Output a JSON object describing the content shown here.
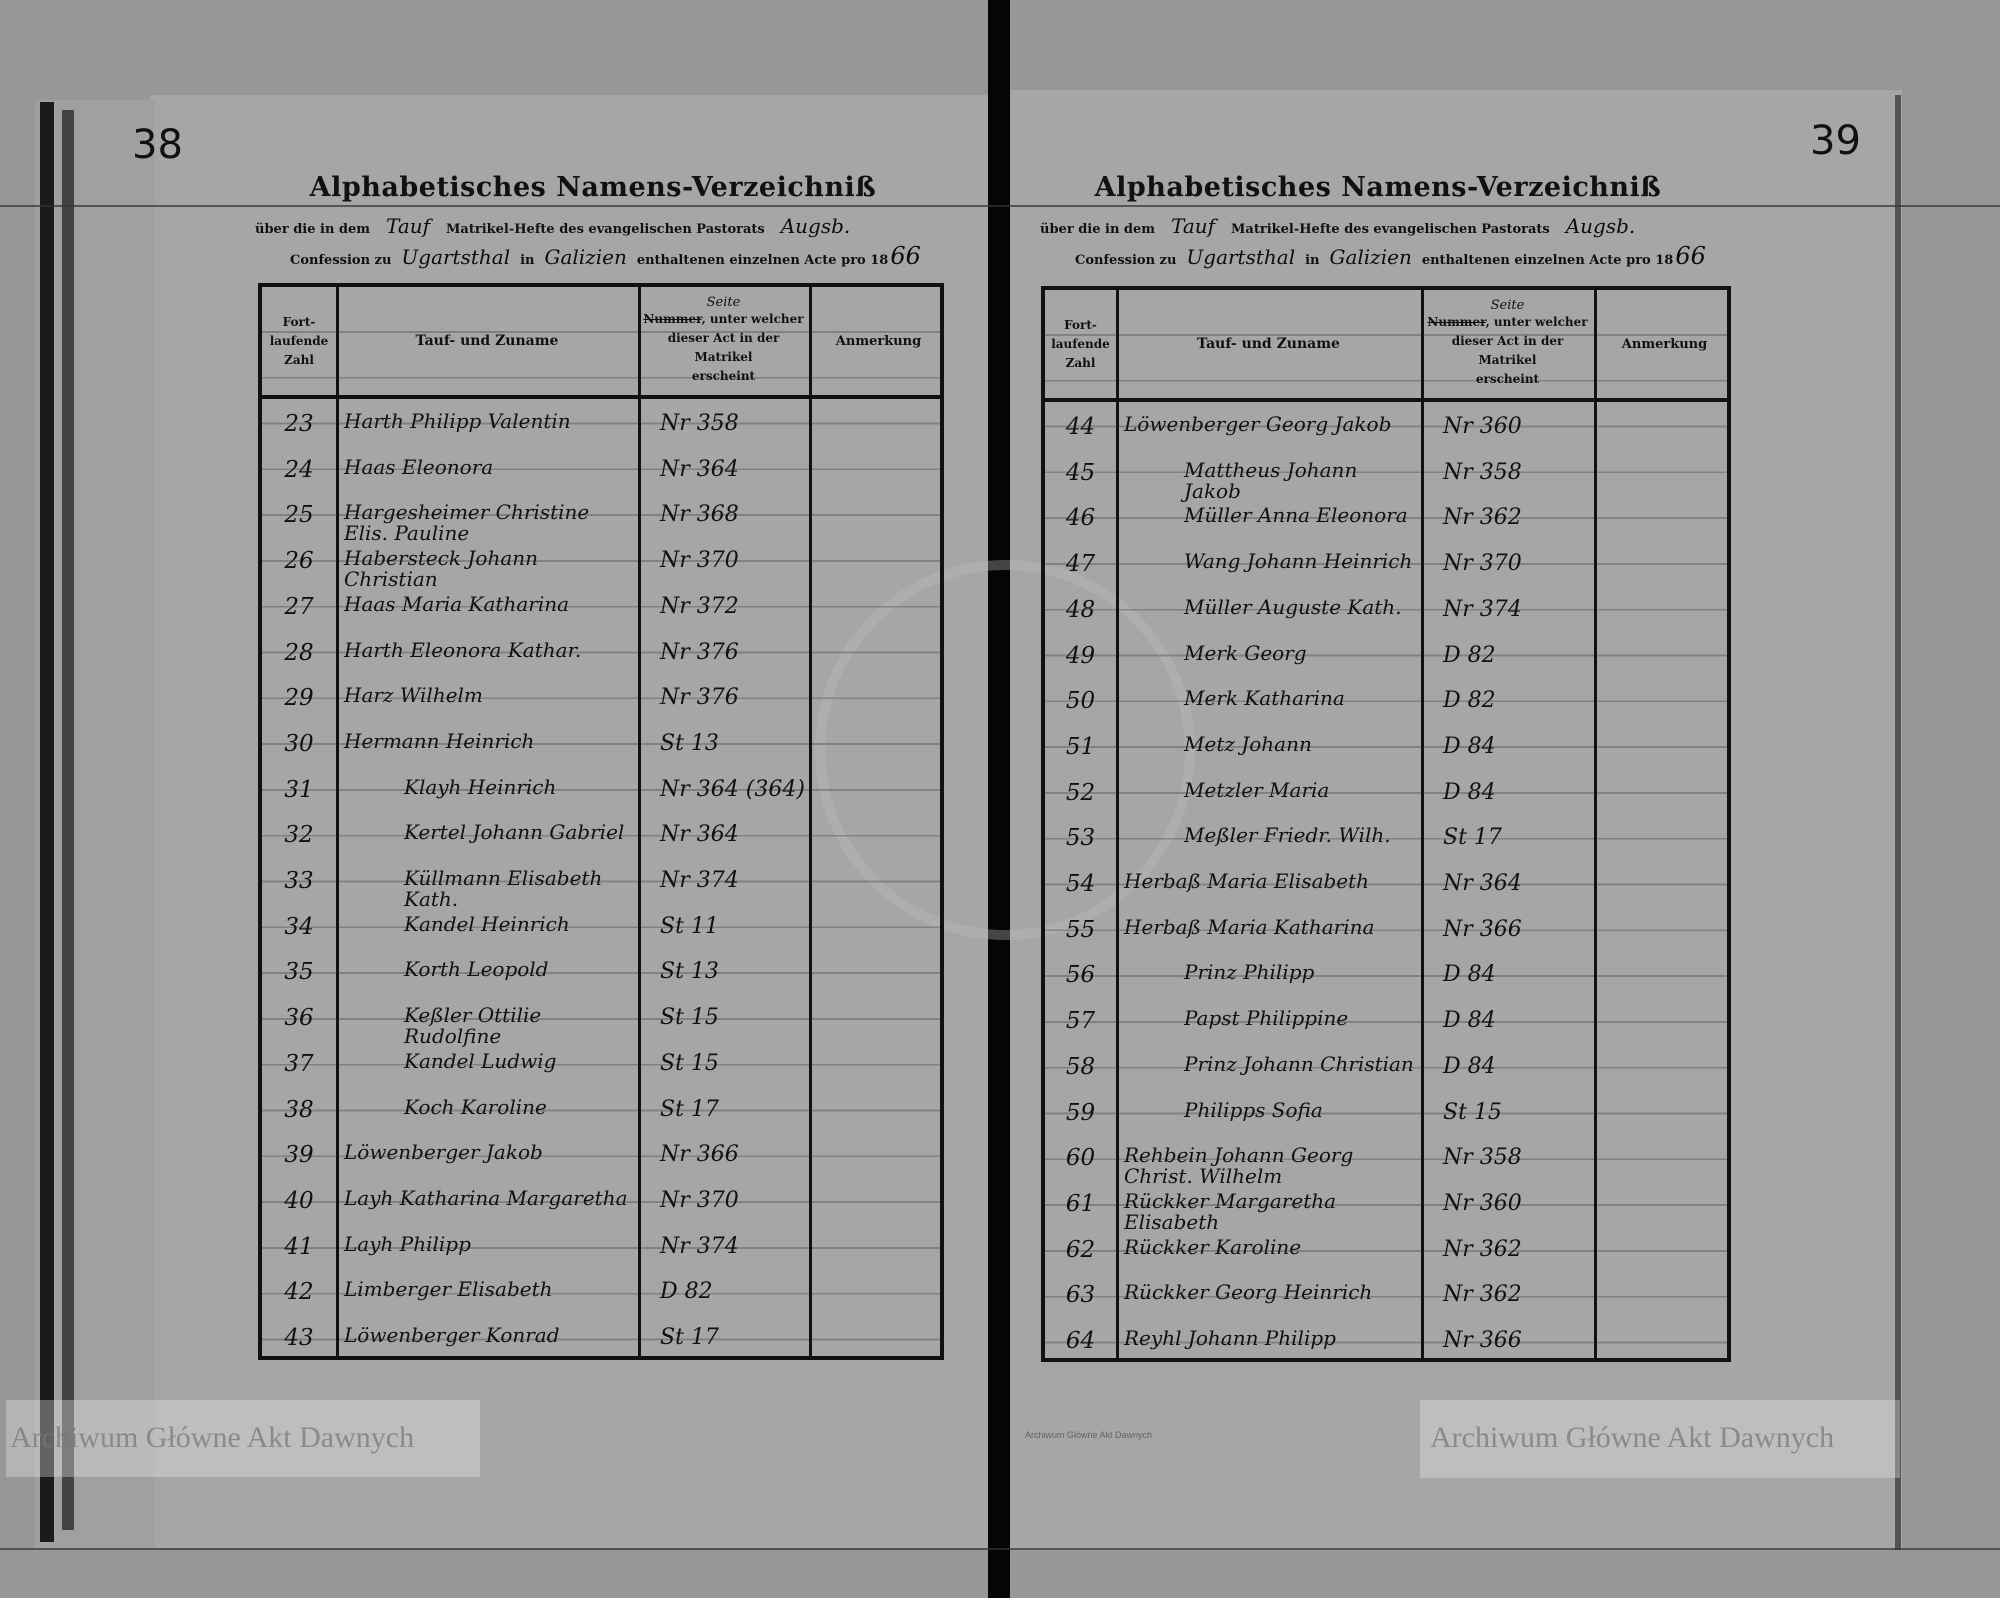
{
  "watermark": "Archiwum Główne Akt Dawnych",
  "colors": {
    "paper": "#a6a6a6",
    "ink": "#111111",
    "background": "#979797"
  },
  "header": {
    "title": "Alphabetisches Namens-Verzeichniß",
    "line1_a": "über die in dem",
    "line1_b": "Matrikel-Hefte des evangelischen Pastorats",
    "line2_a": "Confession zu",
    "line2_b": "in",
    "line2_c": "enthaltenen einzelnen Acte pro 18",
    "hand_register": "Tauf",
    "hand_confession": "Augsb.",
    "hand_place": "Ugartsthal",
    "hand_region": "Galizien",
    "hand_year": "66"
  },
  "columns": {
    "col1_l1": "Fort-",
    "col1_l2": "laufende",
    "col1_l3": "Zahl",
    "col2": "Tauf- und Zuname",
    "col3_struck": "Nummer",
    "col3_over": "Seite",
    "col3_l1": ", unter welcher",
    "col3_l2": "dieser Act in der Matrikel",
    "col3_l3": "erscheint",
    "col4": "Anmerkung"
  },
  "left_page": {
    "page_number": "38",
    "rows": [
      {
        "no": "23",
        "name": "Harth Philipp Valentin",
        "ref": "Nr 358"
      },
      {
        "no": "24",
        "name": "Haas Eleonora",
        "ref": "Nr 364"
      },
      {
        "no": "25",
        "name": "Hargesheimer Christine Elis. Pauline",
        "ref": "Nr 368"
      },
      {
        "no": "26",
        "name": "Habersteck Johann Christian",
        "ref": "Nr 370"
      },
      {
        "no": "27",
        "name": "Haas Maria Katharina",
        "ref": "Nr 372"
      },
      {
        "no": "28",
        "name": "Harth Eleonora Kathar.",
        "ref": "Nr 376"
      },
      {
        "no": "29",
        "name": "Harz Wilhelm",
        "ref": "Nr 376"
      },
      {
        "no": "30",
        "name": "Hermann Heinrich",
        "ref": "St 13"
      },
      {
        "no": "31",
        "name": "Klayh Heinrich",
        "ref": "Nr 364 (364)"
      },
      {
        "no": "32",
        "name": "Kertel Johann Gabriel",
        "ref": "Nr 364"
      },
      {
        "no": "33",
        "name": "Küllmann Elisabeth Kath.",
        "ref": "Nr 374"
      },
      {
        "no": "34",
        "name": "Kandel Heinrich",
        "ref": "St 11"
      },
      {
        "no": "35",
        "name": "Korth Leopold",
        "ref": "St 13"
      },
      {
        "no": "36",
        "name": "Keßler Ottilie Rudolfine",
        "ref": "St 15"
      },
      {
        "no": "37",
        "name": "Kandel Ludwig",
        "ref": "St 15"
      },
      {
        "no": "38",
        "name": "Koch Karoline",
        "ref": "St 17"
      },
      {
        "no": "39",
        "name": "Löwenberger Jakob",
        "ref": "Nr 366"
      },
      {
        "no": "40",
        "name": "Layh Katharina Margaretha",
        "ref": "Nr 370"
      },
      {
        "no": "41",
        "name": "Layh Philipp",
        "ref": "Nr 374"
      },
      {
        "no": "42",
        "name": "Limberger Elisabeth",
        "ref": "D 82"
      },
      {
        "no": "43",
        "name": "Löwenberger Konrad",
        "ref": "St 17"
      }
    ]
  },
  "right_page": {
    "page_number": "39",
    "rows": [
      {
        "no": "44",
        "name": "Löwenberger Georg Jakob",
        "ref": "Nr 360"
      },
      {
        "no": "45",
        "name": "Mattheus Johann Jakob",
        "ref": "Nr 358"
      },
      {
        "no": "46",
        "name": "Müller Anna Eleonora",
        "ref": "Nr 362"
      },
      {
        "no": "47",
        "name": "Wang Johann Heinrich",
        "ref": "Nr 370"
      },
      {
        "no": "48",
        "name": "Müller Auguste Kath.",
        "ref": "Nr 374"
      },
      {
        "no": "49",
        "name": "Merk Georg",
        "ref": "D 82"
      },
      {
        "no": "50",
        "name": "Merk Katharina",
        "ref": "D 82"
      },
      {
        "no": "51",
        "name": "Metz Johann",
        "ref": "D 84"
      },
      {
        "no": "52",
        "name": "Metzler Maria",
        "ref": "D 84"
      },
      {
        "no": "53",
        "name": "Meßler Friedr. Wilh.",
        "ref": "St 17"
      },
      {
        "no": "54",
        "name": "Herbaß Maria Elisabeth",
        "ref": "Nr 364"
      },
      {
        "no": "55",
        "name": "Herbaß Maria Katharina",
        "ref": "Nr 366"
      },
      {
        "no": "56",
        "name": "Prinz Philipp",
        "ref": "D 84"
      },
      {
        "no": "57",
        "name": "Papst Philippine",
        "ref": "D 84"
      },
      {
        "no": "58",
        "name": "Prinz Johann Christian",
        "ref": "D 84"
      },
      {
        "no": "59",
        "name": "Philipps Sofia",
        "ref": "St 15"
      },
      {
        "no": "60",
        "name": "Rehbein Johann Georg Christ. Wilhelm",
        "ref": "Nr 358"
      },
      {
        "no": "61",
        "name": "Rückker Margaretha Elisabeth",
        "ref": "Nr 360"
      },
      {
        "no": "62",
        "name": "Rückker Karoline",
        "ref": "Nr 362"
      },
      {
        "no": "63",
        "name": "Rückker Georg Heinrich",
        "ref": "Nr 362"
      },
      {
        "no": "64",
        "name": "Reyhl Johann Philipp",
        "ref": "Nr 366"
      }
    ]
  }
}
